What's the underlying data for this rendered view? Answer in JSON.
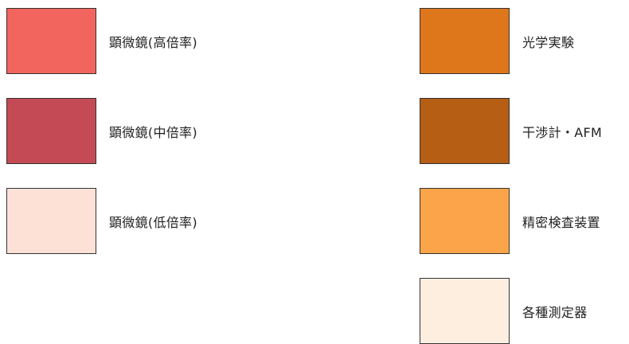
{
  "legend": {
    "items": [
      {
        "label": "顕微鏡(高倍率)",
        "color": "#f2655e"
      },
      {
        "label": "顕微鏡(中倍率)",
        "color": "#c44b55"
      },
      {
        "label": "顕微鏡(低倍率)",
        "color": "#fde0d6"
      },
      {
        "label": "光学実験",
        "color": "#de761c"
      },
      {
        "label": "干渉計・AFM",
        "color": "#b55e14"
      },
      {
        "label": "精密検査装置",
        "color": "#fba449"
      },
      {
        "label": "各種測定器",
        "color": "#fdeee0"
      }
    ]
  }
}
